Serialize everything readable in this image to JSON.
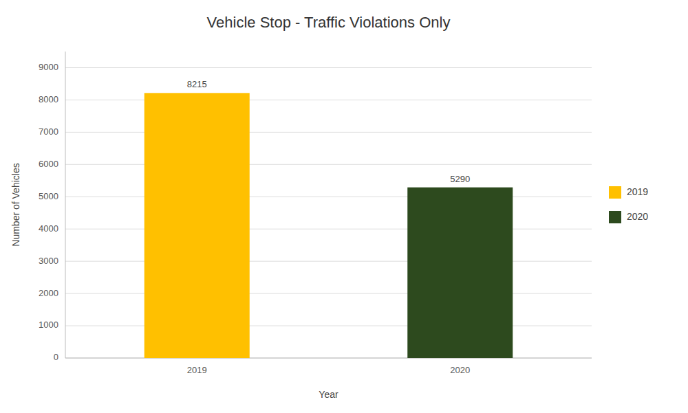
{
  "chart_data": {
    "type": "bar",
    "title": "Vehicle Stop - Traffic Violations Only",
    "xlabel": "Year",
    "ylabel": "Number of Vehicles",
    "categories": [
      "2019",
      "2020"
    ],
    "values": [
      8215,
      5290
    ],
    "colors": [
      "#FFC000",
      "#2D4A1E"
    ],
    "ylim": [
      0,
      9500
    ],
    "yticks": [
      0,
      1000,
      2000,
      3000,
      4000,
      5000,
      6000,
      7000,
      8000,
      9000
    ],
    "grid": true,
    "data_labels": true,
    "legend": "right"
  }
}
